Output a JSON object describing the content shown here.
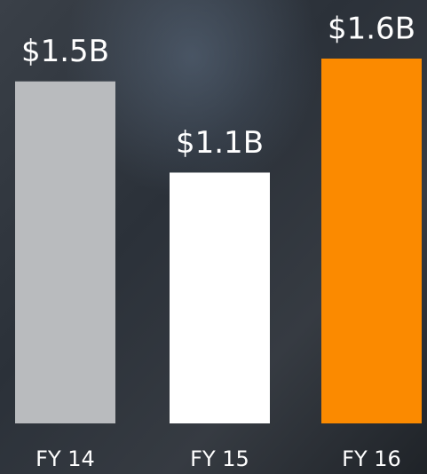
{
  "chart_data": {
    "type": "bar",
    "categories": [
      "FY 14",
      "FY 15",
      "FY 16"
    ],
    "values": [
      1.5,
      1.1,
      1.6
    ],
    "value_labels": [
      "$1.5B",
      "$1.1B",
      "$1.6B"
    ],
    "colors": [
      "#b9bbbe",
      "#ffffff",
      "#fb8a00"
    ]
  }
}
